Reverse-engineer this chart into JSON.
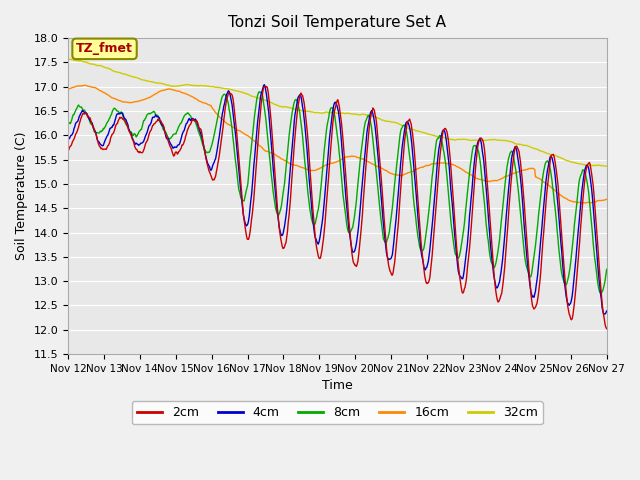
{
  "title": "Tonzi Soil Temperature Set A",
  "xlabel": "Time",
  "ylabel": "Soil Temperature (C)",
  "ylim": [
    11.5,
    18.0
  ],
  "yticks": [
    11.5,
    12.0,
    12.5,
    13.0,
    13.5,
    14.0,
    14.5,
    15.0,
    15.5,
    16.0,
    16.5,
    17.0,
    17.5,
    18.0
  ],
  "xtick_labels": [
    "Nov 12",
    "Nov 13",
    "Nov 14",
    "Nov 15",
    "Nov 16",
    "Nov 17",
    "Nov 18",
    "Nov 19",
    "Nov 20",
    "Nov 21",
    "Nov 22",
    "Nov 23",
    "Nov 24",
    "Nov 25",
    "Nov 26",
    "Nov 27"
  ],
  "legend_labels": [
    "2cm",
    "4cm",
    "8cm",
    "16cm",
    "32cm"
  ],
  "line_colors": [
    "#cc0000",
    "#0000cc",
    "#00aa00",
    "#ff8800",
    "#cccc00"
  ],
  "line_widths": [
    1.0,
    1.0,
    1.0,
    1.0,
    1.0
  ],
  "plot_bg_color": "#e8e8e8",
  "fig_bg_color": "#f0f0f0",
  "annotation_text": "TZ_fmet",
  "annotation_bg": "#ffff99",
  "annotation_fg": "#aa0000",
  "annotation_border": "#888800",
  "grid_color": "#ffffff",
  "figsize": [
    6.4,
    4.8
  ],
  "dpi": 100
}
